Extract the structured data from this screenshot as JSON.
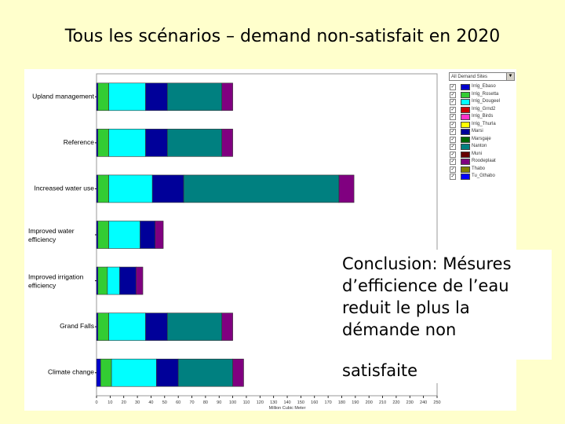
{
  "slide": {
    "title": "Tous les scénarios – demand non-satisfait en 2020",
    "conclusion_lines": [
      "Conclusion: Mésures",
      "d’efficience de l’eau",
      "reduit le plus la",
      "démande non"
    ],
    "conclusion_tail": "satisfaite"
  },
  "legend": {
    "select_value": "All Demand Sites",
    "items": [
      {
        "label": "Irrig_Ebaso",
        "color": "#0000cc"
      },
      {
        "label": "Irrig_Rosetta",
        "color": "#33cc33"
      },
      {
        "label": "Irrig_Dougeel",
        "color": "#00ffff"
      },
      {
        "label": "Irrig_Grnd2",
        "color": "#cc0000"
      },
      {
        "label": "Irrig_Birds",
        "color": "#ff33cc"
      },
      {
        "label": "Irrig_Thurla",
        "color": "#ffff00"
      },
      {
        "label": "Marsi",
        "color": "#000099"
      },
      {
        "label": "Marsgaje",
        "color": "#006600"
      },
      {
        "label": "Nanton",
        "color": "#008080"
      },
      {
        "label": "Muni",
        "color": "#660000"
      },
      {
        "label": "Roodeplaat",
        "color": "#800080"
      },
      {
        "label": "Thabo",
        "color": "#808000"
      },
      {
        "label": "Tu_Gthabo",
        "color": "#0000ff"
      }
    ]
  },
  "chart_data": {
    "type": "bar",
    "orientation": "horizontal",
    "stacked": true,
    "categories": [
      "Upland management",
      "Reference",
      "Increased water use",
      "Improved water efficiency",
      "Improved irrigation efficiency",
      "Grand Falls",
      "Climate change"
    ],
    "x_ticks": [
      "0",
      "10",
      "20",
      "30",
      "40",
      "50",
      "60",
      "70",
      "80",
      "90",
      "100",
      "110",
      "120",
      "130",
      "140",
      "150",
      "160",
      "170",
      "180",
      "190",
      "200",
      "210",
      "220",
      "230",
      "240",
      "250"
    ],
    "xlabel": "Million Cubic Meter",
    "xlim": [
      0,
      250
    ],
    "series": [
      {
        "name": "Irrig_Ebaso",
        "color": "#0000cc",
        "values": [
          1,
          1,
          1,
          1,
          1,
          1,
          3
        ]
      },
      {
        "name": "Irrig_Rosetta",
        "color": "#33cc33",
        "values": [
          8,
          8,
          8,
          8,
          7,
          8,
          8
        ]
      },
      {
        "name": "Irrig_Dougeel",
        "color": "#00ffff",
        "values": [
          27,
          27,
          32,
          23,
          9,
          27,
          33
        ]
      },
      {
        "name": "Marsi",
        "color": "#000099",
        "values": [
          16,
          16,
          23,
          11,
          12,
          16,
          16
        ]
      },
      {
        "name": "Nanton",
        "color": "#008080",
        "values": [
          40,
          40,
          114,
          0,
          0,
          40,
          40
        ]
      },
      {
        "name": "Roodeplaat",
        "color": "#800080",
        "values": [
          8,
          8,
          11,
          6,
          5,
          8,
          8
        ]
      }
    ]
  }
}
